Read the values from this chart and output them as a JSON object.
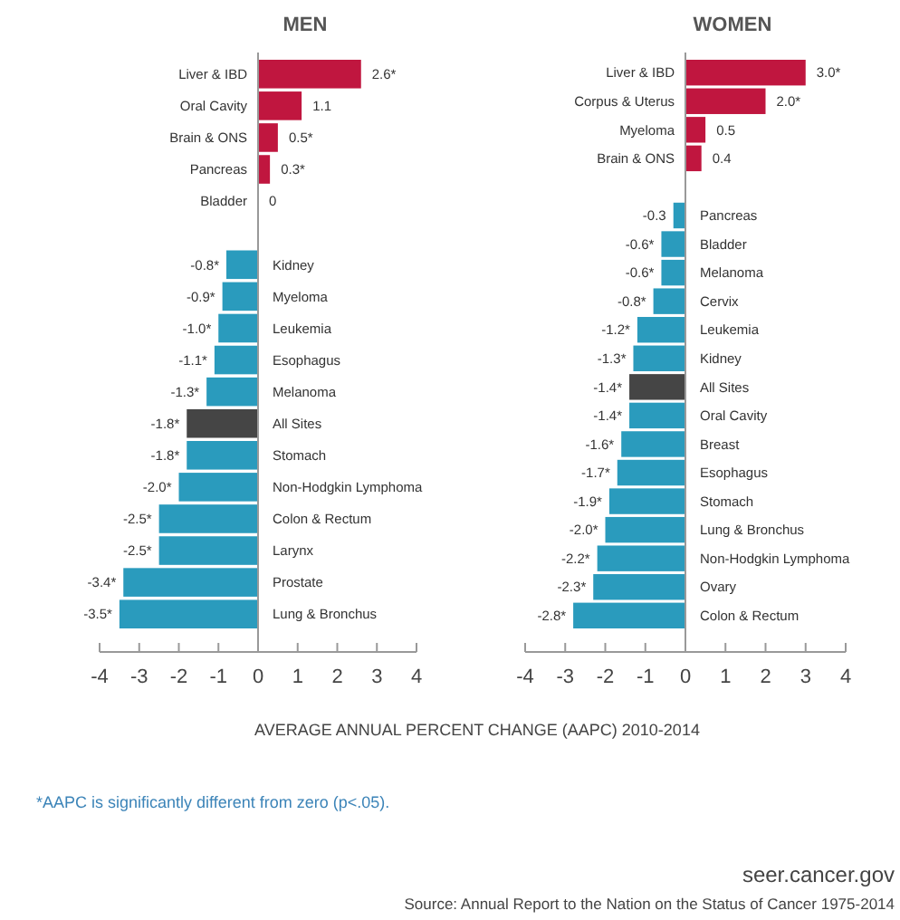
{
  "chart_data": [
    {
      "type": "bar",
      "orientation": "horizontal",
      "title": "MEN",
      "xlabel": "AVERAGE ANNUAL PERCENT CHANGE (AAPC) 2010-2014",
      "categories": [
        "Liver & IBD",
        "Oral Cavity",
        "Brain & ONS",
        "Pancreas",
        "Bladder",
        null,
        "Kidney",
        "Myeloma",
        "Leukemia",
        "Esophagus",
        "Melanoma",
        "All Sites",
        "Stomach",
        "Non-Hodgkin Lymphoma",
        "Colon & Rectum",
        "Larynx",
        "Prostate",
        "Lung & Bronchus"
      ],
      "values": [
        2.6,
        1.1,
        0.5,
        0.3,
        0,
        null,
        -0.8,
        -0.9,
        -1.0,
        -1.1,
        -1.3,
        -1.8,
        -1.8,
        -2.0,
        -2.5,
        -2.5,
        -3.4,
        -3.5
      ],
      "value_labels": [
        "2.6*",
        "1.1",
        "0.5*",
        "0.3*",
        "0",
        null,
        "-0.8*",
        "-0.9*",
        "-1.0*",
        "-1.1*",
        "-1.3*",
        "-1.8*",
        "-1.8*",
        "-2.0*",
        "-2.5*",
        "-2.5*",
        "-3.4*",
        "-3.5*"
      ],
      "colors": [
        "#c0163f",
        "#c0163f",
        "#c0163f",
        "#c0163f",
        "#c0163f",
        null,
        "#2a9bbd",
        "#2a9bbd",
        "#2a9bbd",
        "#2a9bbd",
        "#2a9bbd",
        "#454545",
        "#2a9bbd",
        "#2a9bbd",
        "#2a9bbd",
        "#2a9bbd",
        "#2a9bbd",
        "#2a9bbd"
      ],
      "xlim": [
        -4,
        4
      ],
      "xticks": [
        -4,
        -3,
        -2,
        -1,
        0,
        1,
        2,
        3,
        4
      ],
      "grid": false
    },
    {
      "type": "bar",
      "orientation": "horizontal",
      "title": "WOMEN",
      "categories": [
        "Liver & IBD",
        "Corpus & Uterus",
        "Myeloma",
        "Brain & ONS",
        null,
        "Pancreas",
        "Bladder",
        "Melanoma",
        "Cervix",
        "Leukemia",
        "Kidney",
        "All Sites",
        "Oral Cavity",
        "Breast",
        "Esophagus",
        "Stomach",
        "Lung & Bronchus",
        "Non-Hodgkin Lymphoma",
        "Ovary",
        "Colon & Rectum"
      ],
      "values": [
        3.0,
        2.0,
        0.5,
        0.4,
        null,
        -0.3,
        -0.6,
        -0.6,
        -0.8,
        -1.2,
        -1.3,
        -1.4,
        -1.4,
        -1.6,
        -1.7,
        -1.9,
        -2.0,
        -2.2,
        -2.3,
        -2.8
      ],
      "value_labels": [
        "3.0*",
        "2.0*",
        "0.5",
        "0.4",
        null,
        "-0.3",
        "-0.6*",
        "-0.6*",
        "-0.8*",
        "-1.2*",
        "-1.3*",
        "-1.4*",
        "-1.4*",
        "-1.6*",
        "-1.7*",
        "-1.9*",
        "-2.0*",
        "-2.2*",
        "-2.3*",
        "-2.8*"
      ],
      "colors": [
        "#c0163f",
        "#c0163f",
        "#c0163f",
        "#c0163f",
        null,
        "#2a9bbd",
        "#2a9bbd",
        "#2a9bbd",
        "#2a9bbd",
        "#2a9bbd",
        "#2a9bbd",
        "#454545",
        "#2a9bbd",
        "#2a9bbd",
        "#2a9bbd",
        "#2a9bbd",
        "#2a9bbd",
        "#2a9bbd",
        "#2a9bbd",
        "#2a9bbd"
      ],
      "xlim": [
        -4,
        4
      ],
      "xticks": [
        -4,
        -3,
        -2,
        -1,
        0,
        1,
        2,
        3,
        4
      ],
      "grid": false,
      "annotations": [
        "*AAPC is significantly different from zero (p<.05).",
        "seer.cancer.gov",
        "Source: Annual Report to the Nation on the Status of Cancer 1975-2014"
      ]
    }
  ]
}
